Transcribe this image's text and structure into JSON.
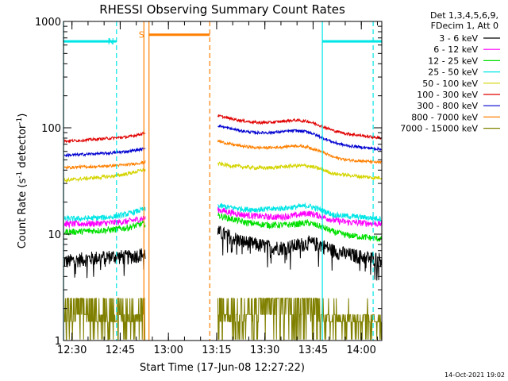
{
  "chart_data": {
    "type": "line",
    "title": "RHESSI Observing Summary Count Rates",
    "xlabel": "Start Time (17-Jun-08 12:27:22)",
    "ylabel_parts": [
      "Count Rate (s",
      "-1",
      " detector",
      "-1",
      ")"
    ],
    "yscale": "log",
    "ylim": [
      1,
      1000
    ],
    "xlim_minutes": [
      0,
      99
    ],
    "x_ticks": [
      {
        "m": 2.633,
        "label": "12:30"
      },
      {
        "m": 17.633,
        "label": "12:45"
      },
      {
        "m": 32.633,
        "label": "13:00"
      },
      {
        "m": 47.633,
        "label": "13:15"
      },
      {
        "m": 62.633,
        "label": "13:30"
      },
      {
        "m": 77.633,
        "label": "13:45"
      },
      {
        "m": 92.633,
        "label": "14:00"
      }
    ],
    "y_ticks": [
      {
        "v": 1,
        "label": "1"
      },
      {
        "v": 10,
        "label": "10"
      },
      {
        "v": 100,
        "label": "100"
      },
      {
        "v": 1000,
        "label": "1000"
      }
    ],
    "legend_header": [
      "Det 1,3,4,5,6,9,",
      "FDecim 1, Att 0"
    ],
    "legend_position": "right",
    "data_gap_minutes": [
      25.5,
      48.0
    ],
    "series": [
      {
        "name": "3 - 6 keV",
        "color": "#000000",
        "x": [
          0,
          5,
          10,
          15,
          20,
          24.5,
          48,
          52,
          56,
          60,
          64,
          68,
          72,
          76,
          80,
          84,
          88,
          92,
          96,
          99
        ],
        "y": [
          5.5,
          5.8,
          6.0,
          6.2,
          6.1,
          6.5,
          10.5,
          9.5,
          8.5,
          8.0,
          7.6,
          7.5,
          7.8,
          8.3,
          8.0,
          7.0,
          6.5,
          6.2,
          6.0,
          5.8
        ]
      },
      {
        "name": "6 - 12 keV",
        "color": "#ff00ff",
        "x": [
          0,
          5,
          10,
          15,
          20,
          24.5,
          48,
          52,
          56,
          60,
          64,
          68,
          72,
          76,
          80,
          84,
          88,
          92,
          96,
          99
        ],
        "y": [
          12.5,
          12.5,
          12.6,
          12.8,
          13.2,
          14.0,
          17.0,
          16.0,
          15.2,
          14.8,
          14.5,
          14.6,
          15.0,
          15.8,
          14.8,
          13.5,
          13.0,
          12.8,
          12.6,
          12.5
        ]
      },
      {
        "name": "12 - 25 keV",
        "color": "#00e000",
        "x": [
          0,
          5,
          10,
          15,
          20,
          24.5,
          48,
          52,
          56,
          60,
          64,
          68,
          72,
          76,
          80,
          84,
          88,
          92,
          96,
          99
        ],
        "y": [
          10.5,
          10.6,
          10.8,
          11.0,
          11.5,
          12.5,
          15.0,
          14.0,
          13.0,
          12.5,
          12.2,
          12.2,
          12.4,
          12.8,
          11.8,
          10.5,
          9.8,
          9.5,
          9.2,
          9.0
        ]
      },
      {
        "name": "25 - 50 keV",
        "color": "#00e5e5",
        "x": [
          0,
          5,
          10,
          15,
          20,
          24.5,
          48,
          52,
          56,
          60,
          64,
          68,
          72,
          76,
          80,
          84,
          88,
          92,
          96,
          99
        ],
        "y": [
          14.0,
          14.0,
          14.2,
          14.5,
          15.5,
          17.0,
          18.5,
          17.8,
          17.2,
          17.0,
          17.2,
          17.5,
          18.0,
          18.5,
          17.0,
          15.2,
          14.8,
          14.5,
          14.2,
          14.0
        ]
      },
      {
        "name": "50 - 100 keV",
        "color": "#d4d400",
        "x": [
          0,
          5,
          10,
          15,
          20,
          24.5,
          48,
          52,
          56,
          60,
          64,
          68,
          72,
          76,
          80,
          84,
          88,
          92,
          96,
          99
        ],
        "y": [
          32,
          33,
          34,
          35,
          37,
          40,
          46,
          44,
          43,
          42,
          42,
          43,
          44,
          44,
          41,
          37,
          36,
          35,
          34,
          34
        ]
      },
      {
        "name": "100 - 300 keV",
        "color": "#e00000",
        "x": [
          0,
          5,
          10,
          15,
          20,
          24.5,
          48,
          52,
          56,
          60,
          64,
          68,
          72,
          76,
          80,
          84,
          88,
          92,
          96,
          99
        ],
        "y": [
          75,
          76,
          78,
          80,
          82,
          88,
          130,
          122,
          116,
          112,
          112,
          115,
          118,
          115,
          105,
          94,
          88,
          85,
          82,
          80
        ]
      },
      {
        "name": "300 - 800 keV",
        "color": "#0000d0",
        "x": [
          0,
          5,
          10,
          15,
          20,
          24.5,
          48,
          52,
          56,
          60,
          64,
          68,
          72,
          76,
          80,
          84,
          88,
          92,
          96,
          99
        ],
        "y": [
          55,
          56,
          57,
          58,
          60,
          63,
          105,
          98,
          93,
          90,
          90,
          92,
          94,
          92,
          82,
          73,
          68,
          66,
          64,
          63
        ]
      },
      {
        "name": "800 - 7000 keV",
        "color": "#ff8000",
        "x": [
          0,
          5,
          10,
          15,
          20,
          24.5,
          48,
          52,
          56,
          60,
          64,
          68,
          72,
          76,
          80,
          84,
          88,
          92,
          96,
          99
        ],
        "y": [
          42,
          43,
          43,
          44,
          45,
          47,
          75,
          70,
          67,
          65,
          65,
          66,
          68,
          66,
          60,
          53,
          50,
          49,
          48,
          47
        ]
      },
      {
        "name": "7000 - 15000 keV",
        "color": "#808000",
        "x": [
          0,
          5,
          10,
          15,
          20,
          24.5,
          48,
          52,
          56,
          60,
          64,
          68,
          72,
          76,
          80,
          84,
          88,
          92,
          96,
          99
        ],
        "y": [
          1.5,
          1.6,
          1.5,
          1.6,
          1.5,
          1.6,
          1.7,
          1.6,
          1.6,
          1.8,
          2.4,
          2.5,
          2.5,
          2.4,
          1.5,
          1.4,
          1.3,
          1.3,
          1.2,
          1.2
        ]
      }
    ],
    "markers": [
      {
        "kind": "segment",
        "label": "N",
        "color": "#00e5e5",
        "x_start": 0,
        "x_end": 16.5,
        "y": 650
      },
      {
        "kind": "segment",
        "label": "",
        "color": "#00e5e5",
        "x_start": 80.5,
        "x_end": 99,
        "y": 650
      },
      {
        "kind": "segment",
        "label": "S",
        "color": "#ff8000",
        "x_start": 26.5,
        "x_end": 45.5,
        "y": 750
      },
      {
        "kind": "vline",
        "color": "#00e5e5",
        "x": 0,
        "dashed": false
      },
      {
        "kind": "vline",
        "color": "#00e5e5",
        "x": 16.5,
        "dashed": true
      },
      {
        "kind": "vline",
        "color": "#ff8000",
        "x": 25.0,
        "dashed": false
      },
      {
        "kind": "vline",
        "color": "#ff8000",
        "x": 26.6,
        "dashed": false
      },
      {
        "kind": "vline",
        "color": "#ff8000",
        "x": 45.5,
        "dashed": true
      },
      {
        "kind": "vline",
        "color": "#00e5e5",
        "x": 80.5,
        "dashed": false
      },
      {
        "kind": "vline",
        "color": "#00e5e5",
        "x": 96.3,
        "dashed": true
      }
    ]
  },
  "footer": {
    "timestamp": "14-Oct-2021 19:02"
  }
}
